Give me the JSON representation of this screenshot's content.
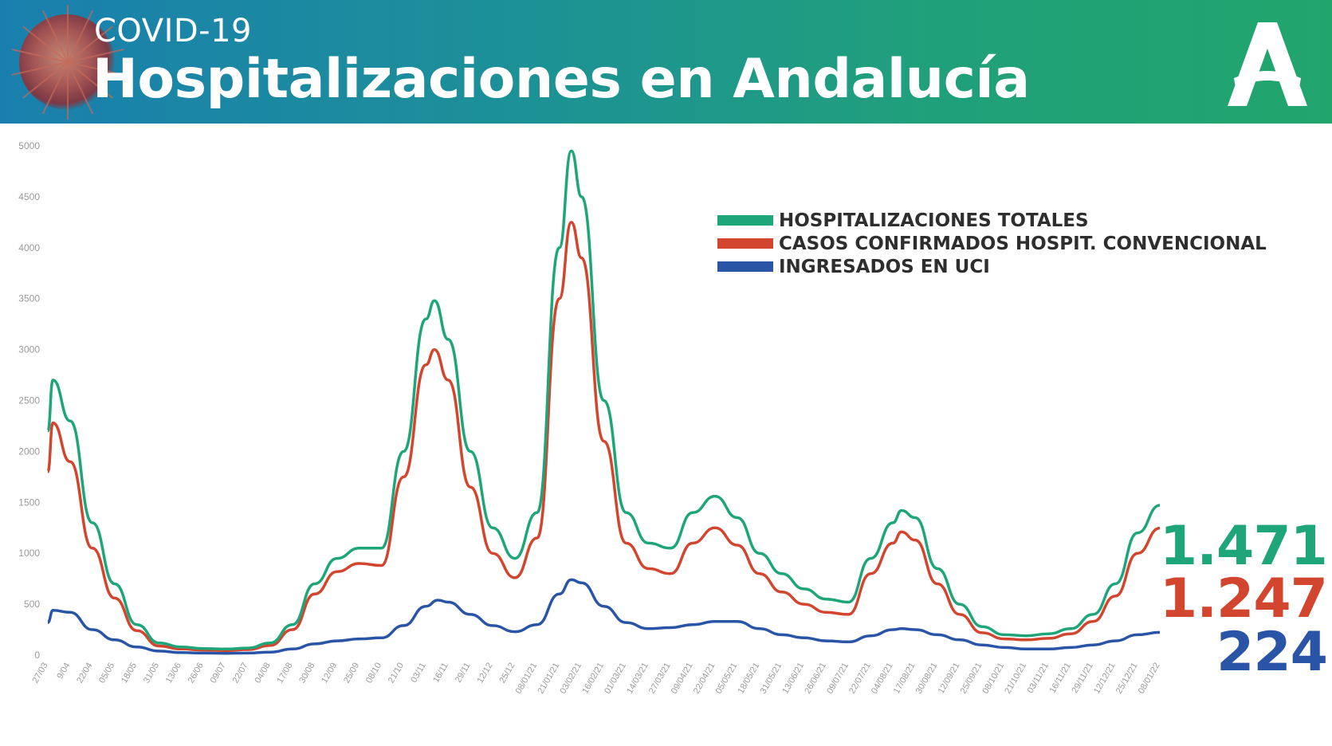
{
  "header": {
    "suptitle": "COVID-19",
    "title": "Hospitalizaciones en Andalucía",
    "banner_colors": [
      "#1a7fae",
      "#22a56d"
    ]
  },
  "final_values": {
    "total": "1.471",
    "convencional": "1.247",
    "uci": "224"
  },
  "chart_data": {
    "type": "line",
    "ylim": [
      0,
      5000
    ],
    "y_ticks": [
      0,
      500,
      1000,
      1500,
      2000,
      2500,
      3000,
      3500,
      4000,
      4500,
      5000
    ],
    "x_tick_labels": [
      "27/03",
      "9/04",
      "22/04",
      "05/05",
      "18/05",
      "31/05",
      "13/06",
      "26/06",
      "09/07",
      "22/07",
      "04/08",
      "17/08",
      "30/08",
      "12/09",
      "25/09",
      "08/10",
      "21/10",
      "03/11",
      "16/11",
      "29/11",
      "12/12",
      "25/12",
      "08/01/21",
      "21/01/21",
      "03/02/21",
      "16/02/21",
      "01/03/21",
      "14/03/21",
      "27/03/21",
      "09/04/21",
      "22/04/21",
      "05/05/21",
      "18/05/21",
      "31/05/21",
      "13/06/21",
      "26/06/21",
      "09/07/21",
      "22/07/21",
      "04/08/21",
      "17/08/21",
      "30/08/21",
      "12/09/21",
      "25/09/21",
      "08/10/21",
      "21/10/21",
      "03/11/21",
      "16/11/21",
      "29/11/21",
      "12/12/21",
      "25/12/21",
      "08/01/22"
    ],
    "series": [
      {
        "name": "HOSPITALIZACIONES TOTALES",
        "color": "#1fa57a",
        "points": [
          [
            "27/03",
            2200
          ],
          [
            "30/03",
            2700
          ],
          [
            "9/04",
            2300
          ],
          [
            "22/04",
            1300
          ],
          [
            "05/05",
            700
          ],
          [
            "18/05",
            300
          ],
          [
            "31/05",
            120
          ],
          [
            "13/06",
            80
          ],
          [
            "26/06",
            65
          ],
          [
            "09/07",
            60
          ],
          [
            "22/07",
            70
          ],
          [
            "04/08",
            120
          ],
          [
            "17/08",
            300
          ],
          [
            "30/08",
            700
          ],
          [
            "12/09",
            950
          ],
          [
            "25/09",
            1050
          ],
          [
            "08/10",
            1050
          ],
          [
            "21/10",
            2000
          ],
          [
            "03/11",
            3300
          ],
          [
            "08/11",
            3480
          ],
          [
            "16/11",
            3100
          ],
          [
            "29/11",
            2000
          ],
          [
            "12/12",
            1250
          ],
          [
            "25/12",
            950
          ],
          [
            "08/01/21",
            1400
          ],
          [
            "21/01/21",
            4000
          ],
          [
            "28/01/21",
            4950
          ],
          [
            "03/02/21",
            4500
          ],
          [
            "16/02/21",
            2500
          ],
          [
            "01/03/21",
            1400
          ],
          [
            "14/03/21",
            1100
          ],
          [
            "27/03/21",
            1050
          ],
          [
            "09/04/21",
            1400
          ],
          [
            "22/04/21",
            1560
          ],
          [
            "05/05/21",
            1350
          ],
          [
            "18/05/21",
            1000
          ],
          [
            "31/05/21",
            800
          ],
          [
            "13/06/21",
            650
          ],
          [
            "26/06/21",
            550
          ],
          [
            "09/07/21",
            520
          ],
          [
            "22/07/21",
            950
          ],
          [
            "04/08/21",
            1300
          ],
          [
            "09/08/21",
            1420
          ],
          [
            "17/08/21",
            1350
          ],
          [
            "30/08/21",
            850
          ],
          [
            "12/09/21",
            500
          ],
          [
            "25/09/21",
            280
          ],
          [
            "08/10/21",
            200
          ],
          [
            "21/10/21",
            190
          ],
          [
            "03/11/21",
            210
          ],
          [
            "16/11/21",
            260
          ],
          [
            "29/11/21",
            400
          ],
          [
            "12/12/21",
            700
          ],
          [
            "25/12/21",
            1200
          ],
          [
            "08/01/22",
            1471
          ]
        ]
      },
      {
        "name": "CASOS CONFIRMADOS HOSPIT. CONVENCIONAL",
        "color": "#d2452e",
        "points": [
          [
            "27/03",
            1800
          ],
          [
            "30/03",
            2280
          ],
          [
            "9/04",
            1900
          ],
          [
            "22/04",
            1050
          ],
          [
            "05/05",
            560
          ],
          [
            "18/05",
            240
          ],
          [
            "31/05",
            90
          ],
          [
            "13/06",
            60
          ],
          [
            "26/06",
            50
          ],
          [
            "09/07",
            45
          ],
          [
            "22/07",
            55
          ],
          [
            "04/08",
            95
          ],
          [
            "17/08",
            250
          ],
          [
            "30/08",
            600
          ],
          [
            "12/09",
            820
          ],
          [
            "25/09",
            900
          ],
          [
            "08/10",
            880
          ],
          [
            "21/10",
            1750
          ],
          [
            "03/11",
            2850
          ],
          [
            "08/11",
            3000
          ],
          [
            "16/11",
            2700
          ],
          [
            "29/11",
            1650
          ],
          [
            "12/12",
            1000
          ],
          [
            "25/12",
            760
          ],
          [
            "08/01/21",
            1150
          ],
          [
            "21/01/21",
            3500
          ],
          [
            "28/01/21",
            4250
          ],
          [
            "03/02/21",
            3900
          ],
          [
            "16/02/21",
            2100
          ],
          [
            "01/03/21",
            1100
          ],
          [
            "14/03/21",
            850
          ],
          [
            "27/03/21",
            800
          ],
          [
            "09/04/21",
            1100
          ],
          [
            "22/04/21",
            1250
          ],
          [
            "05/05/21",
            1080
          ],
          [
            "18/05/21",
            800
          ],
          [
            "31/05/21",
            620
          ],
          [
            "13/06/21",
            500
          ],
          [
            "26/06/21",
            420
          ],
          [
            "09/07/21",
            400
          ],
          [
            "22/07/21",
            800
          ],
          [
            "04/08/21",
            1100
          ],
          [
            "09/08/21",
            1210
          ],
          [
            "17/08/21",
            1130
          ],
          [
            "30/08/21",
            700
          ],
          [
            "12/09/21",
            400
          ],
          [
            "25/09/21",
            220
          ],
          [
            "08/10/21",
            160
          ],
          [
            "21/10/21",
            150
          ],
          [
            "03/11/21",
            165
          ],
          [
            "16/11/21",
            210
          ],
          [
            "29/11/21",
            330
          ],
          [
            "12/12/21",
            580
          ],
          [
            "25/12/21",
            1000
          ],
          [
            "08/01/22",
            1247
          ]
        ]
      },
      {
        "name": "INGRESADOS EN UCI",
        "color": "#2a55a6",
        "points": [
          [
            "27/03",
            320
          ],
          [
            "30/03",
            440
          ],
          [
            "9/04",
            420
          ],
          [
            "22/04",
            250
          ],
          [
            "05/05",
            150
          ],
          [
            "18/05",
            80
          ],
          [
            "31/05",
            40
          ],
          [
            "13/06",
            25
          ],
          [
            "26/06",
            20
          ],
          [
            "09/07",
            18
          ],
          [
            "22/07",
            20
          ],
          [
            "04/08",
            30
          ],
          [
            "17/08",
            60
          ],
          [
            "30/08",
            110
          ],
          [
            "12/09",
            140
          ],
          [
            "25/09",
            160
          ],
          [
            "08/10",
            170
          ],
          [
            "21/10",
            290
          ],
          [
            "03/11",
            480
          ],
          [
            "10/11",
            540
          ],
          [
            "16/11",
            520
          ],
          [
            "29/11",
            400
          ],
          [
            "12/12",
            290
          ],
          [
            "25/12",
            230
          ],
          [
            "08/01/21",
            300
          ],
          [
            "21/01/21",
            600
          ],
          [
            "28/01/21",
            740
          ],
          [
            "03/02/21",
            710
          ],
          [
            "16/02/21",
            480
          ],
          [
            "01/03/21",
            320
          ],
          [
            "14/03/21",
            260
          ],
          [
            "27/03/21",
            270
          ],
          [
            "09/04/21",
            300
          ],
          [
            "22/04/21",
            330
          ],
          [
            "05/05/21",
            330
          ],
          [
            "18/05/21",
            260
          ],
          [
            "31/05/21",
            200
          ],
          [
            "13/06/21",
            170
          ],
          [
            "26/06/21",
            140
          ],
          [
            "09/07/21",
            130
          ],
          [
            "22/07/21",
            190
          ],
          [
            "04/08/21",
            250
          ],
          [
            "09/08/21",
            260
          ],
          [
            "17/08/21",
            250
          ],
          [
            "30/08/21",
            200
          ],
          [
            "12/09/21",
            150
          ],
          [
            "25/09/21",
            100
          ],
          [
            "08/10/21",
            75
          ],
          [
            "21/10/21",
            60
          ],
          [
            "03/11/21",
            60
          ],
          [
            "16/11/21",
            75
          ],
          [
            "29/11/21",
            100
          ],
          [
            "12/12/21",
            140
          ],
          [
            "25/12/21",
            200
          ],
          [
            "08/01/22",
            224
          ]
        ]
      }
    ],
    "legend_position": "top-right",
    "grid": false
  }
}
